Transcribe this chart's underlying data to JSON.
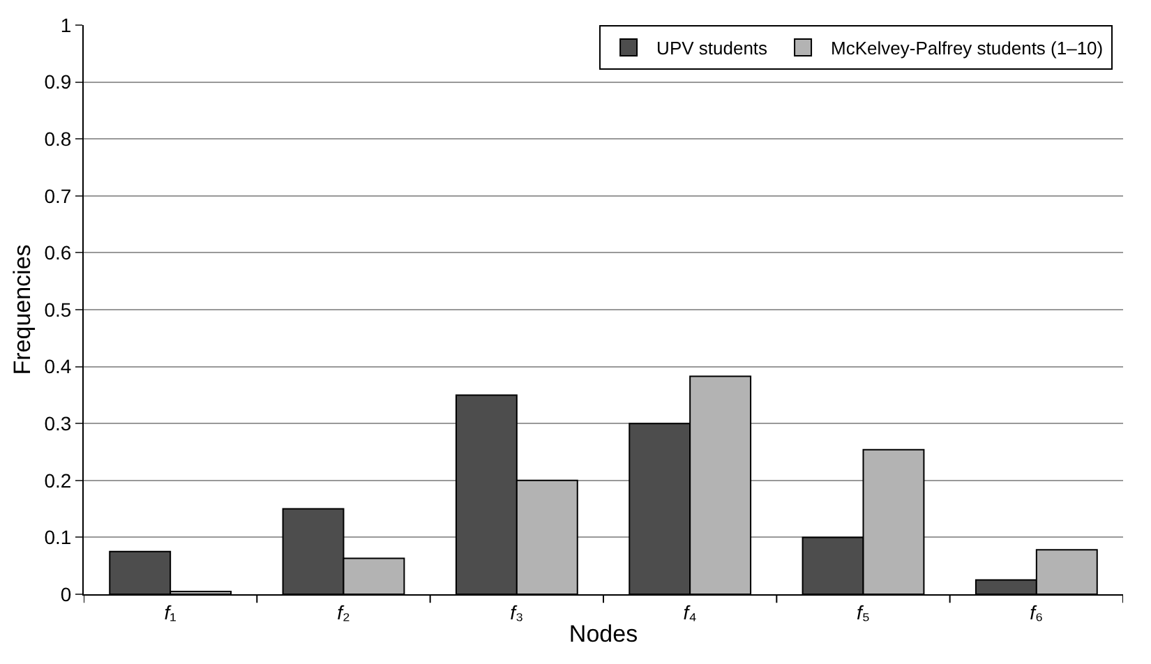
{
  "chart_data": {
    "type": "bar",
    "xlabel": "Nodes",
    "ylabel": "Frequencies",
    "categories": [
      "f₁",
      "f₂",
      "f₃",
      "f₄",
      "f₅",
      "f₆"
    ],
    "series": [
      {
        "name": "UPV students",
        "color": "#4d4d4d",
        "values": [
          0.075,
          0.15,
          0.35,
          0.3,
          0.1,
          0.025
        ]
      },
      {
        "name": "McKelvey-Palfrey students (1–10)",
        "color": "#b3b3b3",
        "values": [
          0.005,
          0.063,
          0.2,
          0.383,
          0.254,
          0.078
        ]
      }
    ],
    "ylim": [
      0,
      1
    ],
    "yticks": [
      0,
      0.1,
      0.2,
      0.3,
      0.4,
      0.5,
      0.6,
      0.7,
      0.8,
      0.9,
      1
    ],
    "grid": "y",
    "legend": "top right"
  }
}
